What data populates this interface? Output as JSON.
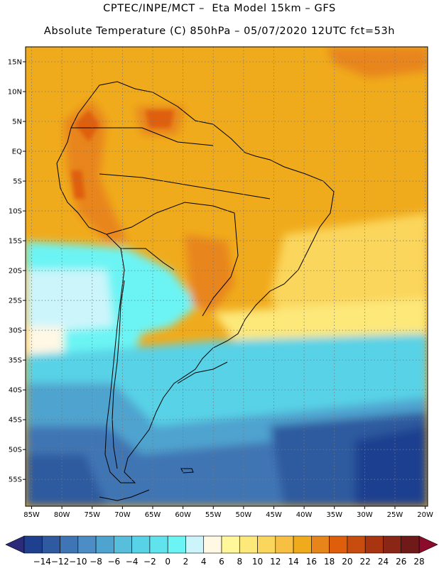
{
  "header": {
    "line1": "CPTEC/INPE/MCT –  Eta Model 15km – GFS",
    "line2": "Absolute Temperature (C) 850hPa – 05/07/2020 12UTC fct=53h"
  },
  "map": {
    "lat_labels": [
      "15N",
      "10N",
      "5N",
      "EQ",
      "5S",
      "10S",
      "15S",
      "20S",
      "25S",
      "30S",
      "35S",
      "40S",
      "45S",
      "50S",
      "55S"
    ],
    "lon_labels": [
      "85W",
      "80W",
      "75W",
      "70W",
      "65W",
      "60W",
      "55W",
      "50W",
      "45W",
      "40W",
      "35W",
      "30W",
      "25W",
      "20W"
    ],
    "lat_values": [
      15,
      10,
      5,
      0,
      -5,
      -10,
      -15,
      -20,
      -25,
      -30,
      -35,
      -40,
      -45,
      -50,
      -55
    ],
    "lon_values": [
      -85,
      -80,
      -75,
      -70,
      -65,
      -60,
      -55,
      -50,
      -45,
      -40,
      -35,
      -30,
      -25,
      -20
    ]
  },
  "colorbar": {
    "labels": [
      "-14",
      "-12",
      "-10",
      "-8",
      "-6",
      "-4",
      "-2",
      "0",
      "2",
      "4",
      "6",
      "8",
      "10",
      "12",
      "14",
      "16",
      "18",
      "20",
      "22",
      "24",
      "26",
      "28"
    ],
    "colors": [
      "#1f3f8f",
      "#2f5a9f",
      "#3f75b4",
      "#4b8dc4",
      "#4fa3cf",
      "#57bfdc",
      "#58d2e6",
      "#60e3ec",
      "#6cf4f4",
      "#ccf5fb",
      "#fff8e4",
      "#fff79a",
      "#fde87a",
      "#fbd65c",
      "#f7c043",
      "#f0ab1c",
      "#e8851a",
      "#df5e0c",
      "#c84c0e",
      "#a83410",
      "#8a2616",
      "#6f1a18"
    ],
    "low_arrow_color": "#2b2b7a",
    "high_arrow_color": "#8c0a2a"
  }
}
